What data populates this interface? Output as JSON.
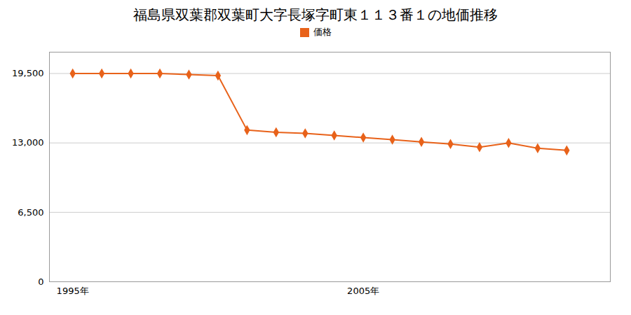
{
  "chart_data": {
    "type": "line",
    "title": "福島県双葉郡双葉町大字長塚字町東１１３番１の地価推移",
    "x": [
      1995,
      1996,
      1997,
      1998,
      1999,
      2000,
      2001,
      2002,
      2003,
      2004,
      2005,
      2006,
      2007,
      2008,
      2009,
      2010,
      2011,
      2012
    ],
    "series": [
      {
        "name": "価格",
        "color": "#e8621a",
        "marker": "diamond",
        "values": [
          19500,
          19500,
          19500,
          19500,
          19400,
          19300,
          14200,
          14000,
          13900,
          13700,
          13500,
          13300,
          13100,
          12900,
          12600,
          13000,
          12500,
          12300
        ]
      }
    ],
    "xlim": [
      1994.2,
      2013.5
    ],
    "xticks": [
      {
        "value": 1995,
        "label": "1995年"
      },
      {
        "value": 2005,
        "label": "2005年"
      }
    ],
    "ylim": [
      0,
      21500
    ],
    "yticks": [
      0,
      {
        "value": 6500,
        "label": "6,500"
      },
      {
        "value": 13000,
        "label": "13,000"
      },
      {
        "value": 19500,
        "label": "19,500"
      }
    ],
    "grid": true,
    "legend": "top"
  }
}
